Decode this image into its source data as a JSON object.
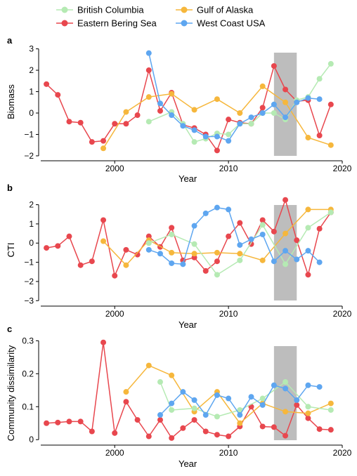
{
  "legend": [
    {
      "name": "British Columbia",
      "color": "#b5eab3"
    },
    {
      "name": "Gulf of Alaska",
      "color": "#f6b73c"
    },
    {
      "name": "Eastern Bering Sea",
      "color": "#e8474e"
    },
    {
      "name": "West Coast USA",
      "color": "#5ea6f0"
    }
  ],
  "chart_data": [
    {
      "type": "line",
      "panel": "a",
      "xlabel": "Year",
      "ylabel": "Biomass",
      "xlim": [
        1993.5,
        2020
      ],
      "ylim": [
        -2.1,
        3.15
      ],
      "xticks": [
        2000,
        2010,
        2020
      ],
      "yticks": [
        -2,
        -1,
        0,
        1,
        2,
        3
      ],
      "highlight": [
        2014,
        2016
      ],
      "series": [
        {
          "name": "British Columbia",
          "color": "#b5eab3",
          "x": [
            2003,
            2005,
            2006,
            2007,
            2008,
            2009,
            2010,
            2011,
            2012,
            2013,
            2014,
            2015,
            2016,
            2017,
            2018,
            2019
          ],
          "y": [
            -0.4,
            0.05,
            -0.5,
            -1.35,
            -1.2,
            -0.95,
            -1.0,
            -0.5,
            -0.5,
            0.0,
            0.0,
            -0.3,
            0.6,
            0.75,
            1.6,
            2.3
          ]
        },
        {
          "name": "Gulf of Alaska",
          "color": "#f6b73c",
          "x": [
            1999,
            2001,
            2003,
            2005,
            2007,
            2009,
            2011,
            2013,
            2015,
            2017,
            2019
          ],
          "y": [
            -1.65,
            0.05,
            0.75,
            0.9,
            0.15,
            0.65,
            0.0,
            1.25,
            0.5,
            -1.15,
            -1.5
          ]
        },
        {
          "name": "Eastern Bering Sea",
          "color": "#e8474e",
          "x": [
            1994,
            1995,
            1996,
            1997,
            1998,
            1999,
            2000,
            2001,
            2002,
            2003,
            2004,
            2005,
            2006,
            2007,
            2008,
            2009,
            2010,
            2011,
            2012,
            2013,
            2014,
            2015,
            2016,
            2017,
            2018,
            2019
          ],
          "y": [
            1.35,
            0.85,
            -0.4,
            -0.45,
            -1.35,
            -1.3,
            -0.5,
            -0.5,
            -0.1,
            2.0,
            0.1,
            0.95,
            -0.55,
            -0.7,
            -1.0,
            -1.75,
            -0.3,
            -0.45,
            -0.5,
            0.25,
            2.2,
            1.1,
            0.55,
            0.6,
            -1.05,
            0.4
          ]
        },
        {
          "name": "West Coast USA",
          "color": "#5ea6f0",
          "x": [
            2003,
            2004,
            2005,
            2006,
            2007,
            2008,
            2009,
            2010,
            2011,
            2012,
            2013,
            2014,
            2015,
            2016,
            2017,
            2018
          ],
          "y": [
            2.8,
            0.45,
            -0.1,
            -0.6,
            -0.8,
            -1.1,
            -1.1,
            -1.3,
            -0.5,
            -0.2,
            0.0,
            0.4,
            -0.2,
            0.5,
            0.7,
            0.65
          ]
        }
      ]
    },
    {
      "type": "line",
      "panel": "b",
      "xlabel": "Year",
      "ylabel": "CTI",
      "xlim": [
        1993.5,
        2020
      ],
      "ylim": [
        -3.1,
        2.35
      ],
      "xticks": [
        2000,
        2010,
        2020
      ],
      "yticks": [
        -3,
        -2,
        -1,
        0,
        1,
        2
      ],
      "highlight": [
        2014,
        2016
      ],
      "series": [
        {
          "name": "British Columbia",
          "color": "#b5eab3",
          "x": [
            2003,
            2005,
            2007,
            2009,
            2011,
            2013,
            2015,
            2017,
            2019
          ],
          "y": [
            0.0,
            0.45,
            -0.05,
            -1.65,
            -0.9,
            0.95,
            -1.1,
            0.8,
            1.6
          ]
        },
        {
          "name": "Gulf of Alaska",
          "color": "#f6b73c",
          "x": [
            1999,
            2001,
            2003,
            2005,
            2007,
            2009,
            2011,
            2013,
            2015,
            2017,
            2019
          ],
          "y": [
            0.1,
            -1.15,
            0.15,
            -0.5,
            -0.55,
            -0.5,
            -0.55,
            -0.9,
            0.5,
            1.75,
            1.75
          ]
        },
        {
          "name": "Eastern Bering Sea",
          "color": "#e8474e",
          "x": [
            1994,
            1995,
            1996,
            1997,
            1998,
            1999,
            2000,
            2001,
            2002,
            2003,
            2004,
            2005,
            2006,
            2007,
            2008,
            2009,
            2010,
            2011,
            2012,
            2013,
            2014,
            2015,
            2016,
            2017,
            2018,
            2019
          ],
          "y": [
            -0.25,
            -0.15,
            0.35,
            -1.15,
            -0.95,
            1.2,
            -1.7,
            -0.35,
            -0.6,
            0.35,
            -0.2,
            0.8,
            -0.9,
            -0.75,
            -1.45,
            -0.95,
            0.35,
            1.05,
            -0.05,
            1.2,
            0.6,
            2.25,
            0.15,
            -1.65,
            0.75,
            1.6
          ]
        },
        {
          "name": "West Coast USA",
          "color": "#5ea6f0",
          "x": [
            2003,
            2004,
            2005,
            2006,
            2007,
            2008,
            2009,
            2010,
            2011,
            2012,
            2013,
            2014,
            2015,
            2016,
            2017,
            2018
          ],
          "y": [
            -0.35,
            -0.55,
            -1.05,
            -1.1,
            0.9,
            1.55,
            1.85,
            1.75,
            -0.1,
            0.2,
            0.45,
            -0.95,
            -0.4,
            -0.85,
            -0.4,
            -1.0
          ]
        }
      ]
    },
    {
      "type": "line",
      "panel": "c",
      "xlabel": "Year",
      "ylabel": "Community dissimilarity",
      "xlim": [
        1993.5,
        2020
      ],
      "ylim": [
        -0.008,
        0.305
      ],
      "xticks": [
        2000,
        2010,
        2020
      ],
      "yticks": [
        0,
        0.1,
        0.2,
        0.3
      ],
      "highlight": [
        2014,
        2016
      ],
      "series": [
        {
          "name": "British Columbia",
          "color": "#b5eab3",
          "x": [
            2004,
            2005,
            2007,
            2009,
            2011,
            2013,
            2015,
            2017,
            2019
          ],
          "y": [
            0.175,
            0.09,
            0.095,
            0.07,
            0.09,
            0.125,
            0.175,
            0.1,
            0.09
          ]
        },
        {
          "name": "Gulf of Alaska",
          "color": "#f6b73c",
          "x": [
            2001,
            2003,
            2005,
            2007,
            2009,
            2011,
            2013,
            2015,
            2017,
            2019
          ],
          "y": [
            0.145,
            0.225,
            0.195,
            0.085,
            0.145,
            0.05,
            0.11,
            0.085,
            0.08,
            0.11
          ]
        },
        {
          "name": "Eastern Bering Sea",
          "color": "#e8474e",
          "x": [
            1994,
            1995,
            1996,
            1997,
            1998,
            1999,
            2000,
            2001,
            2002,
            2003,
            2004,
            2005,
            2006,
            2007,
            2008,
            2009,
            2010,
            2011,
            2012,
            2013,
            2014,
            2015,
            2016,
            2017,
            2018,
            2019
          ],
          "y": [
            0.05,
            0.052,
            0.055,
            0.055,
            0.025,
            0.295,
            0.02,
            0.115,
            0.06,
            0.01,
            0.06,
            0.005,
            0.035,
            0.06,
            0.025,
            0.015,
            0.01,
            0.04,
            0.1,
            0.04,
            0.038,
            0.012,
            0.105,
            0.065,
            0.032,
            0.03
          ]
        },
        {
          "name": "West Coast USA",
          "color": "#5ea6f0",
          "x": [
            2004,
            2005,
            2006,
            2007,
            2008,
            2009,
            2010,
            2011,
            2012,
            2013,
            2014,
            2015,
            2016,
            2017,
            2018
          ],
          "y": [
            0.075,
            0.11,
            0.145,
            0.12,
            0.075,
            0.135,
            0.125,
            0.075,
            0.13,
            0.105,
            0.165,
            0.155,
            0.12,
            0.165,
            0.16
          ]
        }
      ]
    }
  ]
}
